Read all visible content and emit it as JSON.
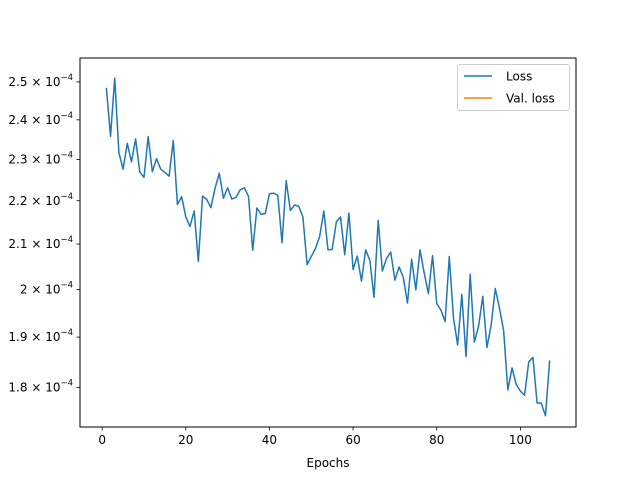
{
  "chart_data": {
    "type": "line",
    "title": "",
    "xlabel": "Epochs",
    "ylabel": "",
    "y_scale": "log",
    "xlim": [
      -5.3,
      113.3
    ],
    "ylim": [
      0.0001725,
      0.0002565
    ],
    "x_ticks": [
      {
        "value": 0,
        "label": "0"
      },
      {
        "value": 20,
        "label": "20"
      },
      {
        "value": 40,
        "label": "40"
      },
      {
        "value": 60,
        "label": "60"
      },
      {
        "value": 80,
        "label": "80"
      },
      {
        "value": 100,
        "label": "100"
      }
    ],
    "y_ticks": [
      {
        "value": 0.00018,
        "mantissa": "1.8",
        "base": "10",
        "exp": "−4"
      },
      {
        "value": 0.00019,
        "mantissa": "1.9",
        "base": "10",
        "exp": "−4"
      },
      {
        "value": 0.0002,
        "mantissa": "2",
        "base": "10",
        "exp": "−4"
      },
      {
        "value": 0.00021,
        "mantissa": "2.1",
        "base": "10",
        "exp": "−4"
      },
      {
        "value": 0.00022,
        "mantissa": "2.2",
        "base": "10",
        "exp": "−4"
      },
      {
        "value": 0.00023,
        "mantissa": "2.3",
        "base": "10",
        "exp": "−4"
      },
      {
        "value": 0.00024,
        "mantissa": "2.4",
        "base": "10",
        "exp": "−4"
      },
      {
        "value": 0.00025,
        "mantissa": "2.5",
        "base": "10",
        "exp": "−4"
      }
    ],
    "grid": false,
    "legend_position": "top-right",
    "series": [
      {
        "name": "Loss",
        "color": "#1f77b4",
        "x": [
          1,
          2,
          3,
          4,
          5,
          6,
          7,
          8,
          9,
          10,
          11,
          12,
          13,
          14,
          15,
          16,
          17,
          18,
          19,
          20,
          21,
          22,
          23,
          24,
          25,
          26,
          27,
          28,
          29,
          30,
          31,
          32,
          33,
          34,
          35,
          36,
          37,
          38,
          39,
          40,
          41,
          42,
          43,
          44,
          45,
          46,
          47,
          48,
          49,
          50,
          51,
          52,
          53,
          54,
          55,
          56,
          57,
          58,
          59,
          60,
          61,
          62,
          63,
          64,
          65,
          66,
          67,
          68,
          69,
          70,
          71,
          72,
          73,
          74,
          75,
          76,
          77,
          78,
          79,
          80,
          81,
          82,
          83,
          84,
          85,
          86,
          87,
          88,
          89,
          90,
          91,
          92,
          93,
          94,
          95,
          96,
          97,
          98,
          99,
          100,
          101,
          102,
          103,
          104,
          105,
          106,
          107
        ],
        "values": [
          0.0002484,
          0.0002358,
          0.000251,
          0.0002317,
          0.0002276,
          0.000234,
          0.0002294,
          0.0002351,
          0.0002269,
          0.0002256,
          0.0002357,
          0.000227,
          0.0002302,
          0.0002276,
          0.0002268,
          0.0002259,
          0.0002347,
          0.0002191,
          0.000221,
          0.0002162,
          0.000214,
          0.0002176,
          0.0002061,
          0.0002211,
          0.0002203,
          0.0002184,
          0.000223,
          0.0002266,
          0.0002206,
          0.0002231,
          0.0002204,
          0.0002208,
          0.0002226,
          0.0002231,
          0.000221,
          0.0002086,
          0.0002183,
          0.0002168,
          0.000217,
          0.0002217,
          0.0002218,
          0.0002213,
          0.0002103,
          0.0002248,
          0.0002177,
          0.000219,
          0.0002187,
          0.0002162,
          0.0002054,
          0.0002072,
          0.000209,
          0.0002117,
          0.0002176,
          0.0002087,
          0.0002088,
          0.0002151,
          0.0002162,
          0.0002076,
          0.0002171,
          0.0002043,
          0.0002073,
          0.0002018,
          0.0002087,
          0.0002064,
          0.0001983,
          0.0002154,
          0.000204,
          0.0002068,
          0.0002082,
          0.000202,
          0.0002049,
          0.0002026,
          0.0001971,
          0.0002066,
          0.0001999,
          0.0002087,
          0.0002036,
          0.0001991,
          0.0002074,
          0.000197,
          0.0001956,
          0.0001932,
          0.0002072,
          0.000194,
          0.0001884,
          0.0001989,
          0.0001861,
          0.0002033,
          0.000189,
          0.0001922,
          0.0001985,
          0.0001879,
          0.0001924,
          0.0002002,
          0.000196,
          0.0001913,
          0.0001795,
          0.0001838,
          0.0001806,
          0.0001793,
          0.0001785,
          0.000185,
          0.0001859,
          0.000177,
          0.000177,
          0.0001746,
          0.0001853
        ]
      },
      {
        "name": "Val. loss",
        "color": "#ff7f0e",
        "x": [],
        "values": []
      }
    ]
  }
}
